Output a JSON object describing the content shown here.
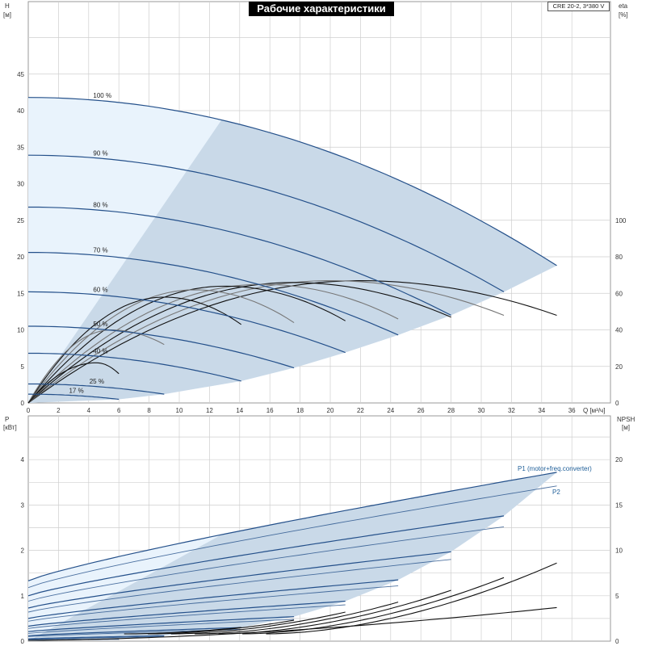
{
  "title": "Рабочие характеристики",
  "model": "CRE 20-2, 3*380 V",
  "colors": {
    "region_light": "#e9f3fc",
    "region_dark": "#c9d9e8",
    "curve_blue": "#24508a",
    "curve_black": "#111111",
    "curve_gray": "#777777",
    "grid": "#cfcfcf",
    "label_blue": "#1f5f99"
  },
  "axes": {
    "h_label": "H",
    "h_unit": "[м]",
    "eta_label": "eta",
    "eta_unit": "[%]",
    "q_label": "Q [м³/ч]",
    "p_label": "P",
    "p_unit": "[кВт]",
    "npsh_label": "NPSH",
    "npsh_unit": "[м]",
    "x_ticks": [
      "0",
      "2",
      "4",
      "6",
      "8",
      "10",
      "12",
      "14",
      "16",
      "18",
      "20",
      "22",
      "24",
      "26",
      "28",
      "30",
      "32",
      "34",
      "36"
    ],
    "h_ticks": [
      "0",
      "5",
      "10",
      "15",
      "20",
      "25",
      "30",
      "35",
      "40",
      "45"
    ],
    "eta_ticks": [
      "0",
      "20",
      "40",
      "60",
      "80",
      "100"
    ],
    "p_ticks": [
      "0",
      "1",
      "2",
      "3",
      "4"
    ],
    "npsh_ticks": [
      "0",
      "5",
      "10",
      "15",
      "20"
    ]
  },
  "chart_data": [
    {
      "type": "line",
      "title": "Рабочие характеристики",
      "xlabel": "Q [м³/ч]",
      "ylabel": "H [м]",
      "y2label": "eta [%]",
      "xlim": [
        0,
        38
      ],
      "ylim": [
        0,
        53
      ],
      "y2lim": [
        0,
        100
      ],
      "speed_curves": [
        {
          "name": "100 %",
          "qmax": 35.0,
          "h0": 41.8,
          "h_end": 18.8
        },
        {
          "name": "90 %",
          "qmax": 31.5,
          "h0": 33.9,
          "h_end": 15.2
        },
        {
          "name": "80 %",
          "qmax": 28.0,
          "h0": 26.8,
          "h_end": 12.0
        },
        {
          "name": "70 %",
          "qmax": 24.5,
          "h0": 20.6,
          "h_end": 9.3
        },
        {
          "name": "60 %",
          "qmax": 21.0,
          "h0": 15.2,
          "h_end": 6.9
        },
        {
          "name": "50 %",
          "qmax": 17.6,
          "h0": 10.5,
          "h_end": 4.8
        },
        {
          "name": "40 %",
          "qmax": 14.1,
          "h0": 6.8,
          "h_end": 3.0
        },
        {
          "name": "25 %",
          "qmax": 9.0,
          "h0": 2.6,
          "h_end": 1.2
        },
        {
          "name": "17 %",
          "qmax": 6.0,
          "h0": 1.2,
          "h_end": 0.5
        }
      ],
      "eta_curves": [
        {
          "qmax": 35.0,
          "peak_q": 22.0,
          "peak_eta": 67,
          "end_eta": 48
        },
        {
          "qmax": 31.5,
          "peak_q": 20.0,
          "peak_eta": 67,
          "end_eta": 48
        },
        {
          "qmax": 28.0,
          "peak_q": 17.5,
          "peak_eta": 66,
          "end_eta": 47
        },
        {
          "qmax": 24.5,
          "peak_q": 15.5,
          "peak_eta": 65,
          "end_eta": 46
        },
        {
          "qmax": 21.0,
          "peak_q": 13.0,
          "peak_eta": 64,
          "end_eta": 45
        },
        {
          "qmax": 17.6,
          "peak_q": 11.0,
          "peak_eta": 62,
          "end_eta": 44
        },
        {
          "qmax": 14.1,
          "peak_q": 9.0,
          "peak_eta": 58,
          "end_eta": 43
        },
        {
          "qmax": 9.0,
          "peak_q": 5.5,
          "peak_eta": 40,
          "end_eta": 32
        },
        {
          "qmax": 6.0,
          "peak_q": 4.5,
          "peak_eta": 22,
          "end_eta": 16
        }
      ]
    },
    {
      "type": "line",
      "xlabel": "Q [м³/ч]",
      "ylabel": "P [кВт]",
      "y2label": "NPSH [м]",
      "xlim": [
        0,
        38
      ],
      "ylim": [
        0,
        4.8
      ],
      "y2lim": [
        0,
        23
      ],
      "series_labels": [
        "P1 (motor+freq.converter)",
        "P2"
      ],
      "p1_curves": [
        {
          "qmax": 35.0,
          "p0": 1.33,
          "p_end": 3.72
        },
        {
          "qmax": 31.5,
          "p0": 1.0,
          "p_end": 2.76
        },
        {
          "qmax": 28.0,
          "p0": 0.73,
          "p_end": 1.97
        },
        {
          "qmax": 24.5,
          "p0": 0.5,
          "p_end": 1.35
        },
        {
          "qmax": 21.0,
          "p0": 0.33,
          "p_end": 0.88
        },
        {
          "qmax": 17.6,
          "p0": 0.21,
          "p_end": 0.54
        },
        {
          "qmax": 14.1,
          "p0": 0.12,
          "p_end": 0.3
        },
        {
          "qmax": 9.0,
          "p0": 0.05,
          "p_end": 0.12
        },
        {
          "qmax": 6.0,
          "p0": 0.02,
          "p_end": 0.05
        }
      ],
      "p2_curves": [
        {
          "qmax": 35.0,
          "p0": 1.18,
          "p_end": 3.42
        },
        {
          "qmax": 31.5,
          "p0": 0.88,
          "p_end": 2.52
        },
        {
          "qmax": 28.0,
          "p0": 0.64,
          "p_end": 1.8
        },
        {
          "qmax": 24.5,
          "p0": 0.44,
          "p_end": 1.22
        },
        {
          "qmax": 21.0,
          "p0": 0.28,
          "p_end": 0.8
        },
        {
          "qmax": 17.6,
          "p0": 0.17,
          "p_end": 0.48
        },
        {
          "qmax": 14.1,
          "p0": 0.1,
          "p_end": 0.26
        },
        {
          "qmax": 9.0,
          "p0": 0.04,
          "p_end": 0.1
        },
        {
          "qmax": 6.0,
          "p0": 0.02,
          "p_end": 0.04
        }
      ],
      "npsh_curves": [
        {
          "qmax": 35.0,
          "npsh_end": 8.6
        },
        {
          "qmax": 31.5,
          "npsh_end": 7.0
        },
        {
          "qmax": 28.0,
          "npsh_end": 5.6
        },
        {
          "qmax": 24.5,
          "npsh_end": 4.3
        },
        {
          "qmax": 21.0,
          "npsh_end": 3.2
        },
        {
          "qmax": 17.6,
          "npsh_end": 2.3
        },
        {
          "qmax": 14.1,
          "npsh_end": 1.5
        }
      ]
    }
  ]
}
